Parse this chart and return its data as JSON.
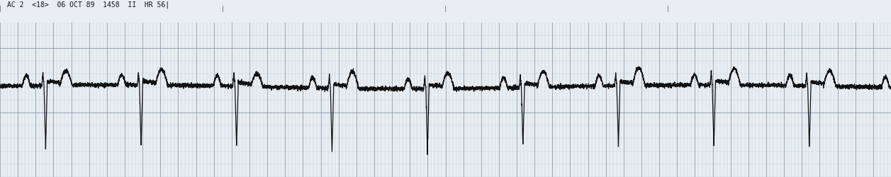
{
  "header_text": "AC 2  <18>  06 OCT 89  1458  II  HR 56|",
  "bg_color": "#e8eef2",
  "grid_fine_color": "#b8c8d4",
  "grid_major_color": "#8899aa",
  "ecg_color": "#111111",
  "fig_width": 12.57,
  "fig_height": 2.51,
  "dpi": 100,
  "header_font_size": 7.0,
  "ecg_linewidth": 0.9,
  "baseline": 0.05,
  "duration": 10.0,
  "sample_rate": 1000,
  "heart_rate": 56,
  "pr_interval": 0.22,
  "ylim_low": -0.65,
  "ylim_high": 0.55,
  "fine_t_step": 0.04,
  "fine_v_step": 0.1,
  "major_t_step": 0.2,
  "major_v_step": 0.5
}
